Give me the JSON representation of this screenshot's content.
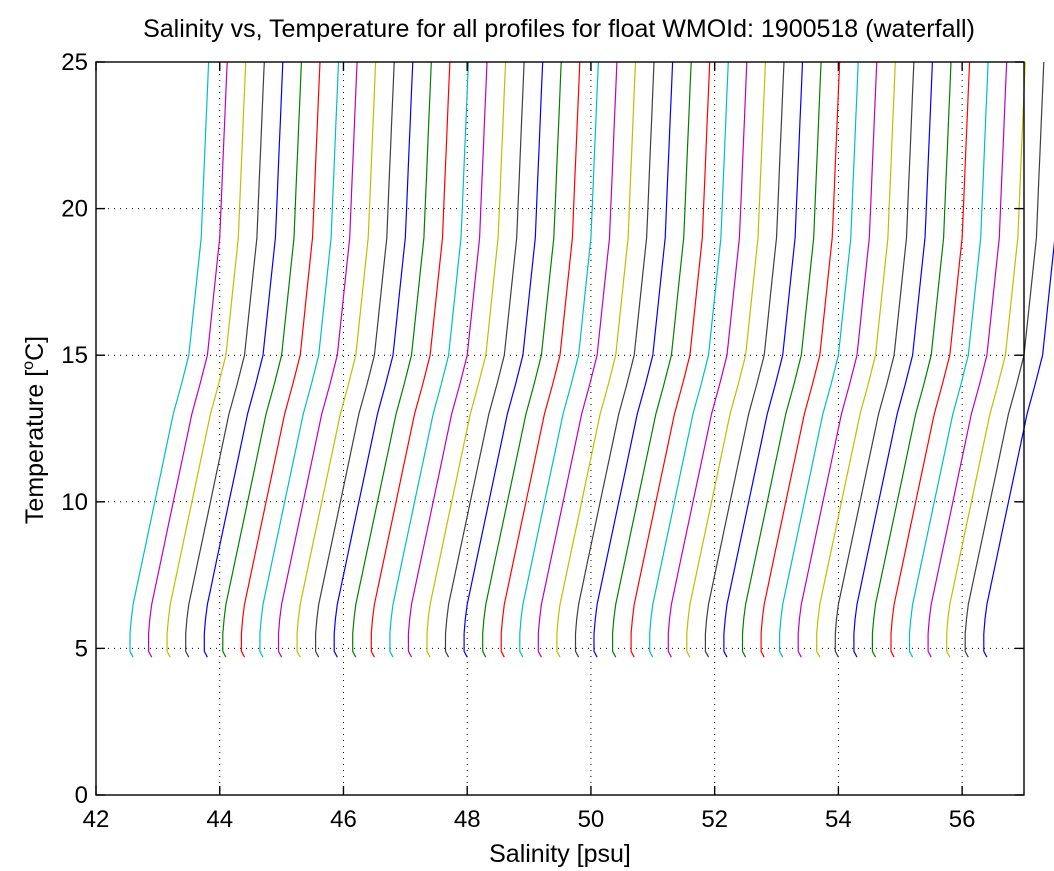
{
  "chart_data": {
    "type": "line",
    "title": "Salinity vs, Temperature for all profiles for float WMOId: 1900518 (waterfall)",
    "xlabel": "Salinity [psu]",
    "ylabel_main": "Temperature [",
    "ylabel_sup": "o",
    "ylabel_unit": "C]",
    "xlim": [
      42,
      57
    ],
    "ylim": [
      0,
      25
    ],
    "xticks": [
      42,
      44,
      46,
      48,
      50,
      52,
      54,
      56
    ],
    "yticks": [
      0,
      5,
      10,
      15,
      20,
      25
    ],
    "grid": true,
    "color_cycle": [
      "#00bfbf",
      "#bf00bf",
      "#bfbf00",
      "#404040",
      "#0000ff",
      "#008000",
      "#ff0000"
    ],
    "waterfall_offset_psu": 0.3,
    "profile_count": 47,
    "first_profile": {
      "temperature": [
        4.7,
        4.9,
        5.1,
        5.5,
        6.0,
        6.5,
        7.0,
        8.0,
        9.0,
        10.0,
        11.0,
        12.0,
        13.0,
        14.0,
        15.0,
        16.0,
        17.0,
        18.0,
        19.0,
        20.0,
        21.0,
        22.0,
        23.0,
        24.0,
        25.0
      ],
      "salinity": [
        42.6,
        42.55,
        42.55,
        42.55,
        42.57,
        42.6,
        42.65,
        42.75,
        42.85,
        42.95,
        43.05,
        43.15,
        43.25,
        43.38,
        43.5,
        43.55,
        43.6,
        43.65,
        43.7,
        43.72,
        43.74,
        43.76,
        43.78,
        43.8,
        43.82
      ]
    },
    "profile_salinity_shifts": [
      0,
      0,
      0,
      0,
      0,
      0,
      0,
      0,
      0,
      0,
      0,
      0,
      0,
      0,
      0,
      0,
      0,
      0,
      0,
      0,
      0,
      0,
      0,
      0,
      0,
      0,
      0,
      0,
      0,
      0,
      0,
      0,
      0,
      0,
      0,
      0,
      0,
      0,
      0,
      0,
      0,
      0,
      0,
      0,
      0,
      0,
      0
    ]
  }
}
